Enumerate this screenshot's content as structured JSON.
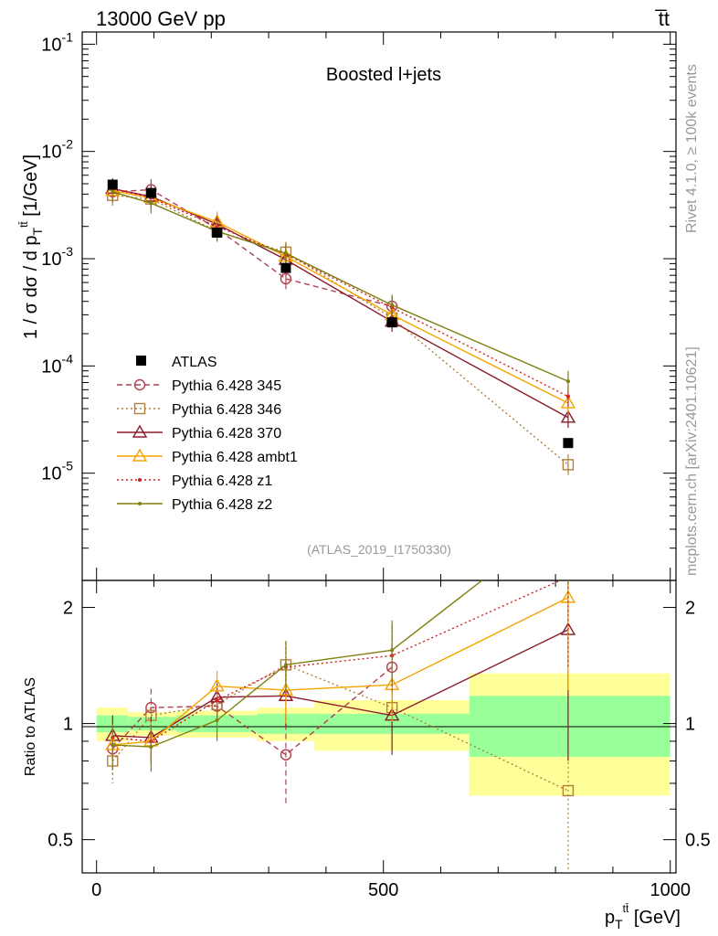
{
  "header": {
    "left": "13000 GeV pp",
    "right": "t̅t"
  },
  "side_text": {
    "rivet": "Rivet 4.1.0, ≥ 100k events",
    "site": "mcplots.cern.ch [arXiv:2401.10621]"
  },
  "chart_data": {
    "type": "line",
    "title": "Boosted l+jets",
    "analysis_tag": "(ATLAS_2019_I1750330)",
    "xlabel": "p_T^{t̅t} [GeV]",
    "ylabel": "1 / σ dσ / d p_T^{t̅t} [1/GeV]",
    "ratio_ylabel": "Ratio to ATLAS",
    "xlim": [
      -25,
      1010
    ],
    "ylim": [
      1e-06,
      0.13
    ],
    "ylog": true,
    "ratio_ylim": [
      0.41,
      2.35
    ],
    "x_ticks": [
      "0",
      "500",
      "1000"
    ],
    "y_ticks": [
      "10^{-5}",
      "10^{-4}",
      "10^{-3}",
      "10^{-2}",
      "10^{-1}"
    ],
    "ratio_ticks": [
      "0.5",
      "1",
      "2"
    ],
    "x": [
      28,
      95,
      210,
      330,
      515,
      822
    ],
    "bins": [
      [
        0,
        55
      ],
      [
        55,
        140
      ],
      [
        140,
        280
      ],
      [
        280,
        380
      ],
      [
        380,
        650
      ],
      [
        650,
        1000
      ]
    ],
    "atlas": {
      "name": "ATLAS",
      "values": [
        0.0049,
        0.0041,
        0.00175,
        0.00082,
        0.000255,
        1.91e-05
      ],
      "band_inner": [
        0.05,
        0.04,
        0.05,
        0.06,
        0.06,
        0.18
      ],
      "band_outer": [
        0.1,
        0.07,
        0.08,
        0.1,
        0.15,
        0.35
      ]
    },
    "series": [
      {
        "name": "Pythia 6.428 345",
        "color": "#b04050",
        "dash": "6,4",
        "marker": "circle",
        "values": [
          0.0042,
          0.0044,
          0.0019,
          0.00065,
          0.00036,
          null
        ],
        "ratio": [
          0.86,
          1.1,
          1.11,
          0.83,
          1.4,
          null
        ],
        "ratio_err": [
          0.12,
          0.13,
          0.12,
          0.22,
          0.38,
          null
        ]
      },
      {
        "name": "Pythia 6.428 346",
        "color": "#b08040",
        "dash": "2,3",
        "marker": "square",
        "values": [
          0.0039,
          0.0036,
          0.0018,
          0.00115,
          0.00028,
          1.2e-05
        ],
        "ratio": [
          0.8,
          1.05,
          1.12,
          1.42,
          1.1,
          0.67
        ],
        "ratio_err": [
          0.1,
          0.11,
          0.1,
          0.2,
          0.25,
          0.7
        ]
      },
      {
        "name": "Pythia 6.428 370",
        "color": "#8b1a2b",
        "dash": "",
        "marker": "triangle",
        "values": [
          0.0045,
          0.0038,
          0.0021,
          0.00098,
          0.00026,
          3.3e-05
        ],
        "ratio": [
          0.93,
          0.92,
          1.17,
          1.18,
          1.05,
          1.75
        ],
        "ratio_err": [
          0.12,
          0.12,
          0.12,
          0.2,
          0.22,
          0.95
        ]
      },
      {
        "name": "Pythia 6.428 ambt1",
        "color": "#f5a400",
        "dash": "",
        "marker": "triangle",
        "values": [
          0.0043,
          0.0037,
          0.0022,
          0.00105,
          0.0003,
          4.5e-05
        ],
        "ratio": [
          0.88,
          0.9,
          1.25,
          1.22,
          1.26,
          2.12
        ],
        "ratio_err": [
          0.12,
          0.12,
          0.12,
          0.22,
          0.25,
          0.9
        ]
      },
      {
        "name": "Pythia 6.428 z1",
        "color": "#d02020",
        "dash": "2,3",
        "marker": "dot",
        "values": [
          0.0045,
          0.0037,
          0.002,
          0.0011,
          0.00035,
          5.2e-05
        ],
        "ratio": [
          0.92,
          0.9,
          1.15,
          1.4,
          1.5,
          2.4
        ],
        "ratio_err": [
          0.12,
          0.12,
          0.12,
          0.22,
          0.3,
          1.0
        ]
      },
      {
        "name": "Pythia 6.428 z2",
        "color": "#808010",
        "dash": "",
        "marker": "dot",
        "values": [
          0.0042,
          0.0033,
          0.0018,
          0.00112,
          0.00037,
          7.2e-05
        ],
        "ratio": [
          0.88,
          0.87,
          1.02,
          1.42,
          1.55,
          3.5
        ],
        "ratio_err": [
          0.12,
          0.12,
          0.12,
          0.22,
          0.3,
          1.2
        ]
      }
    ]
  }
}
